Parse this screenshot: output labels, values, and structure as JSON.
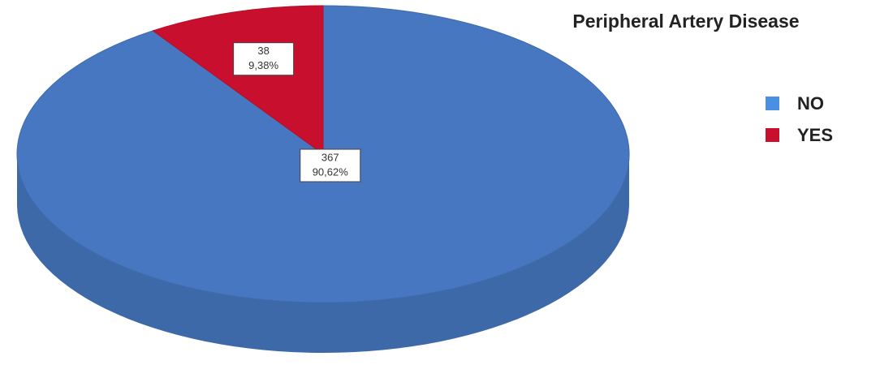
{
  "chart_data": {
    "type": "pie3d",
    "title": "Peripheral Artery Disease",
    "categories": [
      "NO",
      "YES"
    ],
    "values": [
      367,
      38
    ],
    "percentages": [
      90.62,
      9.38
    ],
    "percentage_labels": [
      "90,62%",
      "9,38%"
    ],
    "colors": [
      "#4677c0",
      "#c8102e"
    ],
    "legend_colors": [
      "#4a90e2",
      "#c8102e"
    ],
    "legend": "right"
  }
}
